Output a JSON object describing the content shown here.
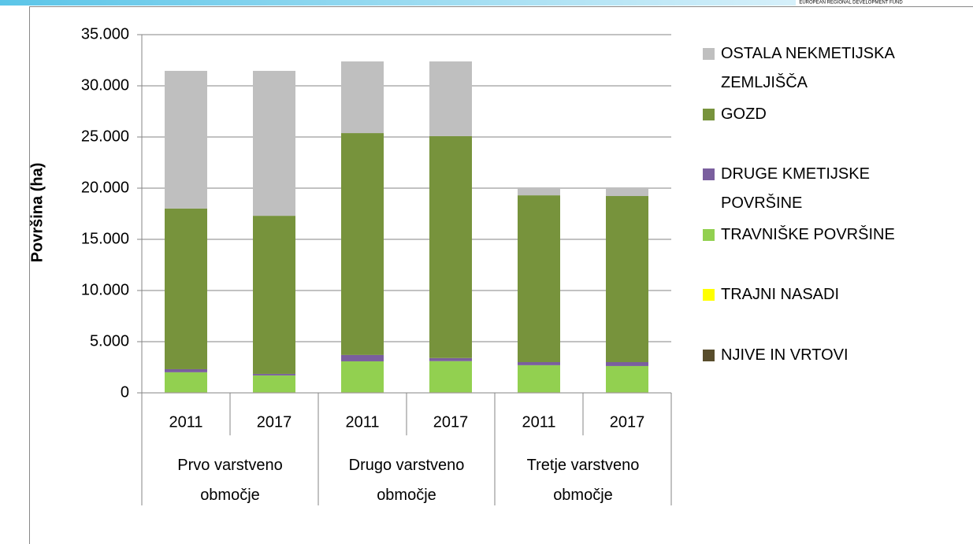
{
  "header_text": "EUROPEAN REGIONAL DEVELOPMENT FUND",
  "chart_data": {
    "type": "stacked_bar",
    "y_label": "Površina (ha)",
    "categories": [
      "2011",
      "2017",
      "2011",
      "2017",
      "2011",
      "2017"
    ],
    "groups": [
      "Prvo varstveno območje",
      "Drugo varstveno območje",
      "Tretje varstveno območje"
    ],
    "series": [
      {
        "name": "NJIVE IN VRTOVI",
        "color": "#584d2c",
        "values": [
          50,
          50,
          50,
          50,
          50,
          50
        ]
      },
      {
        "name": "TRAJNI NASADI",
        "color": "#ffff00",
        "values": [
          10,
          10,
          10,
          10,
          10,
          10
        ]
      },
      {
        "name": "TRAVNIŠKE POVRŠINE",
        "color": "#92d050",
        "values": [
          1950,
          1640,
          3020,
          3040,
          2640,
          2560
        ]
      },
      {
        "name": "DRUGE KMETIJSKE POVRŠINE",
        "color": "#7a5f9e",
        "values": [
          300,
          150,
          620,
          300,
          300,
          380
        ]
      },
      {
        "name": "GOZD",
        "color": "#77933c",
        "values": [
          15700,
          15450,
          21680,
          21680,
          16300,
          16230
        ]
      },
      {
        "name": "OSTALA NEKMETIJSKA ZEMLJIŠČA",
        "color": "#bfbfbf",
        "values": [
          13450,
          14160,
          7000,
          7300,
          780,
          850
        ]
      }
    ],
    "ylim": [
      0,
      35000
    ],
    "yticks": [
      0,
      {
        "value": 5000,
        "label": "5.000"
      },
      {
        "value": 10000,
        "label": "10.000"
      },
      {
        "value": 15000,
        "label": "15.000"
      },
      {
        "value": 20000,
        "label": "20.000"
      },
      {
        "value": 25000,
        "label": "25.000"
      },
      {
        "value": 30000,
        "label": "30.000"
      },
      {
        "value": 35000,
        "label": "35.000"
      }
    ],
    "grid": true
  }
}
